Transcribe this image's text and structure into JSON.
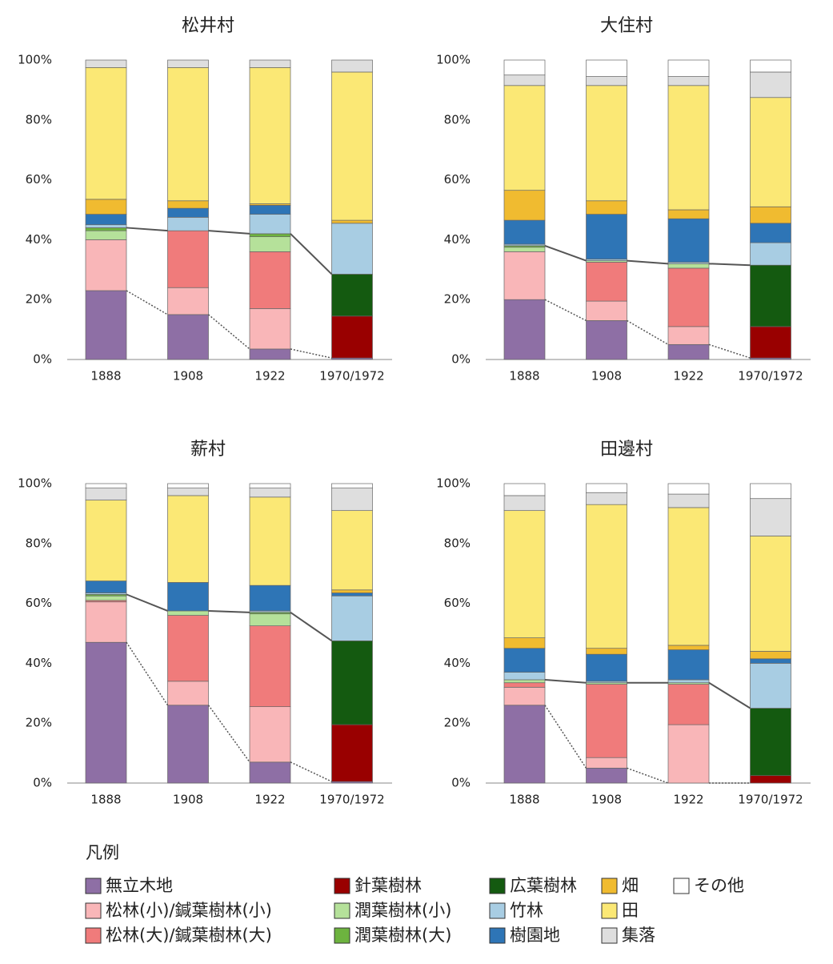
{
  "chart_data": [
    {
      "type": "bar",
      "stacked": true,
      "title": "松井村",
      "categories": [
        "1888",
        "1908",
        "1922",
        "1970/1972"
      ],
      "ylim": [
        0,
        100
      ],
      "yticks": [
        {
          "value": 0,
          "label": "0%"
        },
        {
          "value": 20,
          "label": "20%"
        },
        {
          "value": 40,
          "label": "40%"
        },
        {
          "value": 60,
          "label": "60%"
        },
        {
          "value": 80,
          "label": "80%"
        },
        {
          "value": 100,
          "label": "100%"
        }
      ],
      "grid": false,
      "series": [
        {
          "name": "無立木地",
          "color": "#8e6fa5",
          "values": [
            23,
            15,
            3.5,
            0.5
          ]
        },
        {
          "name": "針葉樹林",
          "color": "#990000",
          "values": [
            0,
            0,
            0,
            14
          ]
        },
        {
          "name": "松林(小)/鍼葉樹林(小)",
          "color": "#f9b6b8",
          "values": [
            17,
            9,
            13.5,
            0
          ]
        },
        {
          "name": "松林(大)/鍼葉樹林(大)",
          "color": "#f07b7b",
          "values": [
            0,
            19,
            19,
            0
          ]
        },
        {
          "name": "潤葉樹林(小)",
          "color": "#b5e19a",
          "values": [
            3,
            0,
            5,
            0
          ]
        },
        {
          "name": "潤葉樹林(大)",
          "color": "#6db33f",
          "values": [
            1,
            0,
            1,
            0
          ]
        },
        {
          "name": "広葉樹林",
          "color": "#145a10",
          "values": [
            0,
            0,
            0,
            14
          ]
        },
        {
          "name": "竹林",
          "color": "#a8cde3",
          "values": [
            1,
            4.5,
            6.5,
            17
          ]
        },
        {
          "name": "樹園地",
          "color": "#2e75b6",
          "values": [
            3.5,
            3,
            3,
            0
          ]
        },
        {
          "name": "畑",
          "color": "#f0bb30",
          "values": [
            5,
            2.5,
            0.5,
            1
          ]
        },
        {
          "name": "田",
          "color": "#fbe875",
          "values": [
            44,
            44.5,
            45.5,
            49.5
          ]
        },
        {
          "name": "集落",
          "color": "#dedede",
          "values": [
            2.5,
            2.5,
            2.5,
            4
          ]
        },
        {
          "name": "その他",
          "color": "#ffffff",
          "values": [
            0,
            0,
            0,
            0
          ]
        }
      ]
    },
    {
      "type": "bar",
      "stacked": true,
      "title": "大住村",
      "categories": [
        "1888",
        "1908",
        "1922",
        "1970/1972"
      ],
      "ylim": [
        0,
        100
      ],
      "yticks": [
        {
          "value": 0,
          "label": "0%"
        },
        {
          "value": 20,
          "label": "20%"
        },
        {
          "value": 40,
          "label": "40%"
        },
        {
          "value": 60,
          "label": "60%"
        },
        {
          "value": 80,
          "label": "80%"
        },
        {
          "value": 100,
          "label": "100%"
        }
      ],
      "grid": false,
      "series": [
        {
          "name": "無立木地",
          "color": "#8e6fa5",
          "values": [
            20,
            13,
            5,
            0.5
          ]
        },
        {
          "name": "針葉樹林",
          "color": "#990000",
          "values": [
            0,
            0,
            0,
            10.5
          ]
        },
        {
          "name": "松林(小)/鍼葉樹林(小)",
          "color": "#f9b6b8",
          "values": [
            16,
            6.5,
            6,
            0
          ]
        },
        {
          "name": "松林(大)/鍼葉樹林(大)",
          "color": "#f07b7b",
          "values": [
            0,
            13,
            19.5,
            0
          ]
        },
        {
          "name": "潤葉樹林(小)",
          "color": "#b5e19a",
          "values": [
            1.5,
            0.5,
            1.5,
            0
          ]
        },
        {
          "name": "潤葉樹林(大)",
          "color": "#6db33f",
          "values": [
            0.5,
            0,
            0,
            0
          ]
        },
        {
          "name": "広葉樹林",
          "color": "#145a10",
          "values": [
            0,
            0,
            0,
            20.5
          ]
        },
        {
          "name": "竹林",
          "color": "#a8cde3",
          "values": [
            0.5,
            0.5,
            0.5,
            7.5
          ]
        },
        {
          "name": "樹園地",
          "color": "#2e75b6",
          "values": [
            8,
            15,
            14.5,
            6.5
          ]
        },
        {
          "name": "畑",
          "color": "#f0bb30",
          "values": [
            10,
            4.5,
            3,
            5.5
          ]
        },
        {
          "name": "田",
          "color": "#fbe875",
          "values": [
            35,
            38.5,
            41.5,
            36.5
          ]
        },
        {
          "name": "集落",
          "color": "#dedede",
          "values": [
            3.5,
            3,
            3,
            8.5
          ]
        },
        {
          "name": "その他",
          "color": "#ffffff",
          "values": [
            5,
            5.5,
            5.5,
            4
          ]
        }
      ]
    },
    {
      "type": "bar",
      "stacked": true,
      "title": "薪村",
      "categories": [
        "1888",
        "1908",
        "1922",
        "1970/1972"
      ],
      "ylim": [
        0,
        100
      ],
      "yticks": [
        {
          "value": 0,
          "label": "0%"
        },
        {
          "value": 20,
          "label": "20%"
        },
        {
          "value": 40,
          "label": "40%"
        },
        {
          "value": 60,
          "label": "60%"
        },
        {
          "value": 80,
          "label": "80%"
        },
        {
          "value": 100,
          "label": "100%"
        }
      ],
      "grid": false,
      "series": [
        {
          "name": "無立木地",
          "color": "#8e6fa5",
          "values": [
            47,
            26,
            7,
            0.5
          ]
        },
        {
          "name": "針葉樹林",
          "color": "#990000",
          "values": [
            0,
            0,
            0,
            19
          ]
        },
        {
          "name": "松林(小)/鍼葉樹林(小)",
          "color": "#f9b6b8",
          "values": [
            13.5,
            8,
            18.5,
            0
          ]
        },
        {
          "name": "松林(大)/鍼葉樹林(大)",
          "color": "#f07b7b",
          "values": [
            0.5,
            22,
            27,
            0
          ]
        },
        {
          "name": "潤葉樹林(小)",
          "color": "#b5e19a",
          "values": [
            1.5,
            1.5,
            4,
            0
          ]
        },
        {
          "name": "潤葉樹林(大)",
          "color": "#6db33f",
          "values": [
            0.5,
            0,
            0.5,
            0
          ]
        },
        {
          "name": "広葉樹林",
          "color": "#145a10",
          "values": [
            0,
            0,
            0,
            28
          ]
        },
        {
          "name": "竹林",
          "color": "#a8cde3",
          "values": [
            0.5,
            0,
            0.5,
            15
          ]
        },
        {
          "name": "樹園地",
          "color": "#2e75b6",
          "values": [
            4,
            9.5,
            8.5,
            1
          ]
        },
        {
          "name": "畑",
          "color": "#f0bb30",
          "values": [
            0,
            0,
            0,
            1
          ]
        },
        {
          "name": "田",
          "color": "#fbe875",
          "values": [
            27,
            29,
            29.5,
            26.5
          ]
        },
        {
          "name": "集落",
          "color": "#dedede",
          "values": [
            4,
            2.5,
            3,
            7.5
          ]
        },
        {
          "name": "その他",
          "color": "#ffffff",
          "values": [
            1.5,
            1.5,
            1.5,
            1.5
          ]
        }
      ]
    },
    {
      "type": "bar",
      "stacked": true,
      "title": "田邊村",
      "categories": [
        "1888",
        "1908",
        "1922",
        "1970/1972"
      ],
      "ylim": [
        0,
        100
      ],
      "yticks": [
        {
          "value": 0,
          "label": "0%"
        },
        {
          "value": 20,
          "label": "20%"
        },
        {
          "value": 40,
          "label": "40%"
        },
        {
          "value": 60,
          "label": "60%"
        },
        {
          "value": 80,
          "label": "80%"
        },
        {
          "value": 100,
          "label": "100%"
        }
      ],
      "grid": false,
      "series": [
        {
          "name": "無立木地",
          "color": "#8e6fa5",
          "values": [
            26,
            5,
            0,
            0
          ]
        },
        {
          "name": "針葉樹林",
          "color": "#990000",
          "values": [
            0,
            0,
            0,
            2.5
          ]
        },
        {
          "name": "松林(小)/鍼葉樹林(小)",
          "color": "#f9b6b8",
          "values": [
            6,
            3.5,
            19.5,
            0
          ]
        },
        {
          "name": "松林(大)/鍼葉樹林(大)",
          "color": "#f07b7b",
          "values": [
            1.5,
            24.5,
            13.5,
            0
          ]
        },
        {
          "name": "潤葉樹林(小)",
          "color": "#b5e19a",
          "values": [
            1,
            0.5,
            0.5,
            0
          ]
        },
        {
          "name": "潤葉樹林(大)",
          "color": "#6db33f",
          "values": [
            0,
            0,
            0,
            0
          ]
        },
        {
          "name": "広葉樹林",
          "color": "#145a10",
          "values": [
            0,
            0,
            0,
            22.5
          ]
        },
        {
          "name": "竹林",
          "color": "#a8cde3",
          "values": [
            2.5,
            0.5,
            1,
            15
          ]
        },
        {
          "name": "樹園地",
          "color": "#2e75b6",
          "values": [
            8,
            9,
            10,
            1.5
          ]
        },
        {
          "name": "畑",
          "color": "#f0bb30",
          "values": [
            3.5,
            2,
            1.5,
            2.5
          ]
        },
        {
          "name": "田",
          "color": "#fbe875",
          "values": [
            42.5,
            48,
            46,
            38.5
          ]
        },
        {
          "name": "集落",
          "color": "#dedede",
          "values": [
            5,
            4,
            4.5,
            12.5
          ]
        },
        {
          "name": "その他",
          "color": "#ffffff",
          "values": [
            4,
            3,
            3.5,
            5
          ]
        }
      ]
    }
  ],
  "legend": {
    "title": "凡例"
  }
}
